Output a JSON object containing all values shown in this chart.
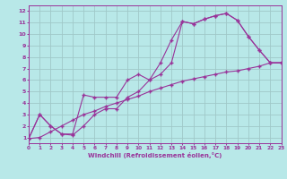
{
  "xlabel": "Windchill (Refroidissement éolien,°C)",
  "bg_color": "#b8e8e8",
  "grid_color": "#a0c8c8",
  "line_color": "#993399",
  "xlim": [
    0,
    23
  ],
  "ylim": [
    0.5,
    12.5
  ],
  "xticks": [
    0,
    1,
    2,
    3,
    4,
    5,
    6,
    7,
    8,
    9,
    10,
    11,
    12,
    13,
    14,
    15,
    16,
    17,
    18,
    19,
    20,
    21,
    22,
    23
  ],
  "yticks": [
    1,
    2,
    3,
    4,
    5,
    6,
    7,
    8,
    9,
    10,
    11,
    12
  ],
  "line1_x": [
    0,
    1,
    2,
    3,
    4,
    5,
    6,
    7,
    8,
    9,
    10,
    11,
    12,
    13,
    14,
    15,
    16,
    17,
    18,
    19,
    20,
    21,
    22,
    23
  ],
  "line1_y": [
    0.9,
    3.0,
    2.0,
    1.3,
    1.3,
    4.7,
    4.5,
    4.5,
    4.5,
    6.0,
    6.5,
    6.0,
    6.5,
    7.5,
    11.1,
    10.9,
    11.3,
    11.6,
    11.8,
    11.2,
    9.8,
    8.6,
    7.5,
    7.5
  ],
  "line2_x": [
    0,
    1,
    2,
    3,
    4,
    5,
    6,
    7,
    8,
    9,
    10,
    11,
    12,
    13,
    14,
    15,
    16,
    17,
    18,
    19,
    20,
    21,
    22,
    23
  ],
  "line2_y": [
    0.9,
    3.0,
    2.0,
    1.3,
    1.2,
    2.0,
    3.0,
    3.5,
    3.5,
    4.5,
    5.0,
    6.0,
    7.5,
    9.5,
    11.1,
    10.9,
    11.3,
    11.6,
    11.8,
    11.2,
    9.8,
    8.6,
    7.5,
    7.5
  ],
  "line3_x": [
    0,
    1,
    2,
    3,
    4,
    5,
    6,
    7,
    8,
    9,
    10,
    11,
    12,
    13,
    14,
    15,
    16,
    17,
    18,
    19,
    20,
    21,
    22,
    23
  ],
  "line3_y": [
    0.9,
    1.0,
    1.5,
    2.0,
    2.5,
    3.0,
    3.3,
    3.7,
    4.0,
    4.3,
    4.6,
    5.0,
    5.3,
    5.6,
    5.9,
    6.1,
    6.3,
    6.5,
    6.7,
    6.8,
    7.0,
    7.2,
    7.5,
    7.5
  ]
}
